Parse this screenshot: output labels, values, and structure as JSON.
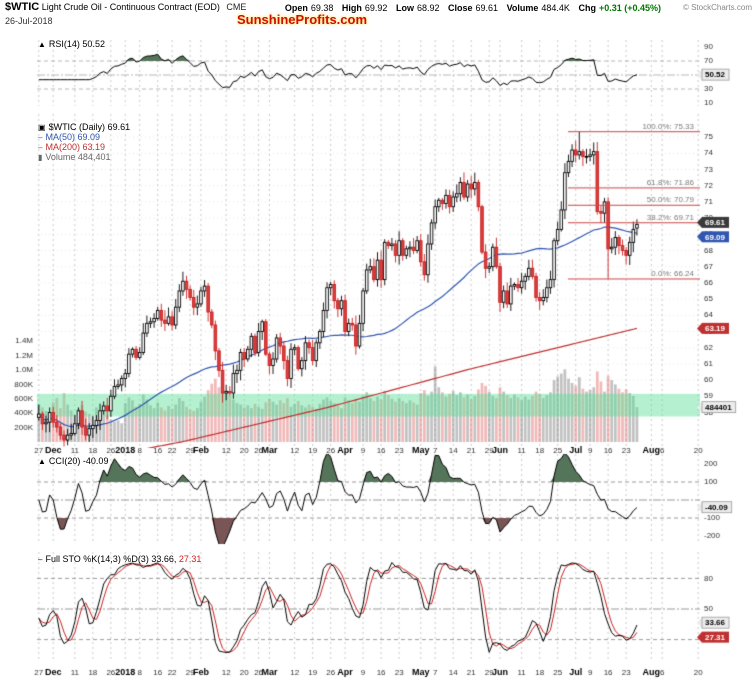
{
  "header": {
    "symbol": "$WTIC",
    "title": "Light Crude Oil - Continuous Contract (EOD)",
    "exchange": "CME",
    "date": "26-Jul-2018",
    "watermark": "SunshineProfits.com",
    "copyright": "© StockCharts.com",
    "quote": {
      "open_label": "Open",
      "open_value": "69.38",
      "high_label": "High",
      "high_value": "69.92",
      "low_label": "Low",
      "low_value": "68.92",
      "close_label": "Close",
      "close_value": "69.61",
      "volume_label": "Volume",
      "volume_value": "484.4K",
      "chg_label": "Chg",
      "chg_value": "+0.31 (+0.45%)"
    }
  },
  "panels": {
    "icons": {
      "indicator": "▲",
      "symbol": "▣",
      "ma": "–",
      "volume": "▮",
      "line": "–"
    },
    "rsi": {
      "legend": "RSI(14) 50.52"
    },
    "price": {
      "symbol_line": "$WTIC (Daily) 69.61",
      "ma50_line": "MA(50) 69.09",
      "ma200_line": "MA(200) 63.19",
      "volume_line": "Volume 484,401"
    },
    "cci": {
      "legend": "CCI(20) -40.09"
    },
    "sto": {
      "legend_prefix": "Full STO %K(14,3) %D(3)",
      "k_text": "33.66,",
      "d_text": "27.31"
    }
  },
  "colors": {
    "up": "#000000",
    "down": "#cc2020",
    "down_fill": "#d94040",
    "ma50": "#3056b0",
    "ma200": "#c03030",
    "fib": "#cc4444",
    "vol_up": "rgba(120,120,120,0.45)",
    "vol_down": "rgba(225,100,100,0.45)",
    "support_band": "rgba(90,225,150,0.45)",
    "fill_high": "#55755a",
    "fill_low": "#7a5555",
    "sto_d": "#cc2020",
    "watermark": "#cc1100",
    "chg": "#007700"
  },
  "chart_data": {
    "type": "candlestick",
    "x_axis": {
      "total_slots": 184,
      "ticks": [
        {
          "label": "27",
          "i": 0,
          "b": 0
        },
        {
          "label": "Dec",
          "i": 4,
          "b": 1
        },
        {
          "label": "11",
          "i": 10,
          "b": 0
        },
        {
          "label": "18",
          "i": 15,
          "b": 0
        },
        {
          "label": "26",
          "i": 20,
          "b": 0
        },
        {
          "label": "2018",
          "i": 24,
          "b": 1
        },
        {
          "label": "8",
          "i": 28,
          "b": 0
        },
        {
          "label": "16",
          "i": 33,
          "b": 0
        },
        {
          "label": "22",
          "i": 37,
          "b": 0
        },
        {
          "label": "29",
          "i": 42,
          "b": 0
        },
        {
          "label": "Feb",
          "i": 45,
          "b": 1
        },
        {
          "label": "12",
          "i": 52,
          "b": 0
        },
        {
          "label": "20",
          "i": 57,
          "b": 0
        },
        {
          "label": "26",
          "i": 61,
          "b": 0
        },
        {
          "label": "Mar",
          "i": 64,
          "b": 1
        },
        {
          "label": "12",
          "i": 71,
          "b": 0
        },
        {
          "label": "19",
          "i": 76,
          "b": 0
        },
        {
          "label": "26",
          "i": 81,
          "b": 0
        },
        {
          "label": "Apr",
          "i": 85,
          "b": 1
        },
        {
          "label": "9",
          "i": 90,
          "b": 0
        },
        {
          "label": "16",
          "i": 95,
          "b": 0
        },
        {
          "label": "23",
          "i": 100,
          "b": 0
        },
        {
          "label": "May",
          "i": 106,
          "b": 1
        },
        {
          "label": "7",
          "i": 110,
          "b": 0
        },
        {
          "label": "14",
          "i": 115,
          "b": 0
        },
        {
          "label": "21",
          "i": 120,
          "b": 0
        },
        {
          "label": "29",
          "i": 125,
          "b": 0
        },
        {
          "label": "Jun",
          "i": 128,
          "b": 1
        },
        {
          "label": "11",
          "i": 134,
          "b": 0
        },
        {
          "label": "18",
          "i": 139,
          "b": 0
        },
        {
          "label": "25",
          "i": 144,
          "b": 0
        },
        {
          "label": "Jul",
          "i": 149,
          "b": 1
        },
        {
          "label": "9",
          "i": 153,
          "b": 0
        },
        {
          "label": "16",
          "i": 158,
          "b": 0
        },
        {
          "label": "23",
          "i": 163,
          "b": 0
        },
        {
          "label": "Aug",
          "i": 170,
          "b": 1
        },
        {
          "label": "6",
          "i": 173,
          "b": 0
        },
        {
          "label": "20",
          "i": 183,
          "b": 0
        }
      ]
    },
    "price_panel": {
      "closes": [
        57.9,
        57.3,
        57.4,
        58.0,
        57.4,
        57.1,
        56.6,
        56.3,
        56.6,
        56.7,
        57.3,
        58.1,
        57.1,
        56.6,
        57.0,
        57.2,
        57.5,
        58.1,
        58.4,
        58.1,
        59.0,
        59.6,
        59.7,
        60.1,
        60.4,
        61.6,
        61.9,
        61.4,
        61.7,
        62.9,
        63.5,
        63.6,
        63.8,
        64.3,
        63.7,
        63.5,
        63.9,
        63.4,
        64.5,
        65.5,
        66.1,
        65.6,
        65.1,
        64.5,
        64.7,
        65.5,
        65.8,
        64.2,
        63.4,
        61.8,
        60.6,
        59.2,
        59.3,
        59.2,
        60.4,
        60.6,
        61.7,
        61.3,
        61.9,
        62.7,
        61.7,
        63.0,
        63.6,
        61.6,
        60.9,
        61.3,
        62.6,
        62.1,
        61.2,
        60.1,
        61.9,
        62.0,
        60.7,
        61.2,
        62.3,
        62.0,
        61.2,
        62.3,
        63.0,
        64.3,
        65.7,
        65.9,
        64.9,
        64.4,
        64.9,
        63.0,
        63.5,
        63.4,
        62.1,
        63.5,
        65.5,
        66.8,
        67.0,
        66.2,
        67.4,
        66.2,
        68.5,
        68.3,
        68.4,
        67.7,
        68.6,
        67.7,
        68.1,
        68.2,
        68.0,
        68.6,
        67.3,
        66.5,
        68.4,
        69.7,
        70.7,
        71.1,
        70.9,
        71.4,
        70.7,
        71.3,
        71.5,
        72.2,
        71.3,
        72.1,
        71.8,
        72.2,
        70.7,
        67.9,
        66.9,
        67.0,
        68.2,
        67.0,
        64.8,
        65.5,
        64.7,
        65.8,
        65.9,
        65.7,
        66.1,
        66.4,
        66.9,
        66.4,
        65.1,
        64.9,
        65.1,
        65.7,
        66.2,
        68.6,
        69.3,
        70.5,
        72.8,
        73.5,
        74.2,
        73.9,
        74.1,
        73.8,
        73.8,
        73.9,
        74.1,
        70.4,
        70.3,
        71.0,
        68.1,
        68.2,
        68.8,
        68.3,
        68.0,
        67.7,
        68.5,
        69.3,
        69.61
      ],
      "last_bar": {
        "open": 69.38,
        "high": 69.92,
        "low": 68.92,
        "close": 69.61
      },
      "forced_high": {
        "i": 150,
        "value": 75.33
      },
      "forced_low": {
        "i": 158,
        "value": 66.24
      },
      "yticks": [
        75,
        74,
        73,
        72,
        71,
        70,
        69,
        68,
        67,
        66,
        65,
        64,
        63,
        62,
        61,
        60,
        59,
        58
      ],
      "ma50_last": 69.09,
      "ma200_last": 63.19,
      "ma200_anchors": [
        [
          0,
          54.5
        ],
        [
          40,
          56.2
        ],
        [
          80,
          58.3
        ],
        [
          120,
          60.7
        ],
        [
          166,
          63.19
        ]
      ],
      "volumes_k": [
        520,
        480,
        430,
        390,
        550,
        610,
        470,
        680,
        520,
        440,
        380,
        460,
        510,
        420,
        390,
        350,
        480,
        440,
        400,
        370,
        310,
        280,
        300,
        260,
        540,
        620,
        580,
        490,
        530,
        660,
        590,
        510,
        470,
        550,
        480,
        440,
        500,
        460,
        520,
        610,
        570,
        490,
        450,
        430,
        470,
        560,
        630,
        720,
        810,
        880,
        760,
        940,
        700,
        650,
        590,
        540,
        520,
        480,
        510,
        470,
        530,
        490,
        460,
        550,
        600,
        560,
        520,
        580,
        540,
        610,
        490,
        530,
        570,
        510,
        480,
        520,
        490,
        460,
        530,
        590,
        620,
        570,
        540,
        500,
        470,
        620,
        580,
        540,
        600,
        560,
        640,
        690,
        610,
        570,
        630,
        590,
        710,
        650,
        600,
        560,
        610,
        570,
        540,
        580,
        550,
        520,
        680,
        720,
        640,
        700,
        1050,
        760,
        690,
        630,
        670,
        710,
        650,
        690,
        620,
        660,
        600,
        640,
        730,
        820,
        780,
        700,
        640,
        610,
        760,
        700,
        650,
        610,
        660,
        620,
        580,
        630,
        590,
        640,
        700,
        670,
        610,
        650,
        690,
        860,
        910,
        950,
        1010,
        880,
        820,
        780,
        900,
        740,
        700,
        720,
        760,
        980,
        840,
        700,
        920,
        860,
        800,
        740,
        690,
        730,
        680,
        640,
        484
      ],
      "volume_last_k": 484,
      "volume_yticks": [
        {
          "label": "1.4M",
          "k": 1400
        },
        {
          "label": "1.2M",
          "k": 1200
        },
        {
          "label": "1.0M",
          "k": 1000
        },
        {
          "label": "800K",
          "k": 800
        },
        {
          "label": "600K",
          "k": 600
        },
        {
          "label": "400K",
          "k": 400
        },
        {
          "label": "200K",
          "k": 200
        }
      ],
      "fibonacci": [
        {
          "label": "100.0%: 75.33",
          "value": 75.33
        },
        {
          "label": "61.8%: 71.86",
          "value": 71.86
        },
        {
          "label": "50.0%: 70.79",
          "value": 70.79
        },
        {
          "label": "38.2%: 69.71",
          "value": 69.71
        },
        {
          "label": "0.0%: 66.24",
          "value": 66.24
        }
      ],
      "support_zone": [
        57.75,
        59.15
      ]
    },
    "rsi_panel": {
      "period": 14,
      "last": 50.52,
      "ref_lines": [
        70,
        50,
        30
      ],
      "yticks": [
        90,
        70,
        30,
        10
      ]
    },
    "cci_panel": {
      "period": 20,
      "last": -40.09,
      "ref_lines": [
        100,
        0,
        -100
      ],
      "yticks": [
        200,
        100,
        -100,
        -200
      ]
    },
    "sto_panel": {
      "k": "%K(14,3)",
      "d": "%D(3)",
      "k_last": 33.66,
      "d_last": 27.31,
      "ref_lines": [
        80,
        50,
        20
      ],
      "yticks": [
        80,
        50,
        20
      ]
    },
    "badges": [
      {
        "panel": "rsi",
        "text": "50.52",
        "value": 50.52,
        "style": "gray"
      },
      {
        "panel": "price",
        "text": "69.61",
        "value": 69.61,
        "style": "dark"
      },
      {
        "panel": "price",
        "text": "69.09",
        "value": 69.09,
        "style": "blue"
      },
      {
        "panel": "price",
        "text": "63.19",
        "value": 63.19,
        "style": "red"
      },
      {
        "panel": "volume",
        "text": "484401",
        "value": 484,
        "style": "gray"
      },
      {
        "panel": "cci",
        "text": "-40.09",
        "value": -40.09,
        "style": "gray"
      },
      {
        "panel": "sto",
        "text": "33.66",
        "value": 33.66,
        "style": "gray"
      },
      {
        "panel": "sto",
        "text": "27.31",
        "value": 27.31,
        "style": "red"
      }
    ]
  }
}
